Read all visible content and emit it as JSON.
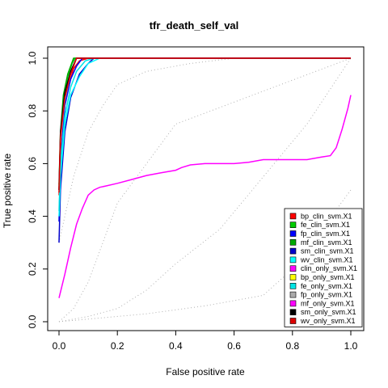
{
  "chart_data": {
    "type": "line",
    "title": "tfr_death_self_val",
    "xlabel": "False positive rate",
    "ylabel": "True positive rate",
    "xlim": [
      0,
      1
    ],
    "ylim": [
      0,
      1
    ],
    "xticks": [
      "0.0",
      "0.2",
      "0.4",
      "0.6",
      "0.8",
      "1.0"
    ],
    "yticks": [
      "0.0",
      "0.2",
      "0.4",
      "0.6",
      "0.8",
      "1.0"
    ],
    "grid": false,
    "legend_position": "bottom-right",
    "series": [
      {
        "name": "bp_clin_svm.X1",
        "color": "#ff0000",
        "x": [
          0,
          0.005,
          0.02,
          0.035,
          0.05,
          0.07,
          0.1,
          1.0
        ],
        "y": [
          0.48,
          0.62,
          0.82,
          0.9,
          0.96,
          0.99,
          1.0,
          1.0
        ]
      },
      {
        "name": "fe_clin_svm.X1",
        "color": "#00cc00",
        "x": [
          0,
          0.005,
          0.015,
          0.03,
          0.045,
          0.055,
          1.0
        ],
        "y": [
          0.5,
          0.7,
          0.85,
          0.93,
          0.98,
          1.0,
          1.0
        ]
      },
      {
        "name": "fp_clin_svm.X1",
        "color": "#0000ff",
        "x": [
          0,
          0.005,
          0.02,
          0.04,
          0.06,
          0.08,
          1.0
        ],
        "y": [
          0.38,
          0.6,
          0.82,
          0.92,
          0.97,
          1.0,
          1.0
        ]
      },
      {
        "name": "mf_clin_svm.X1",
        "color": "#00aa00",
        "x": [
          0,
          0.005,
          0.015,
          0.03,
          0.05,
          1.0
        ],
        "y": [
          0.52,
          0.72,
          0.86,
          0.94,
          1.0,
          1.0
        ]
      },
      {
        "name": "sm_clin_svm.X1",
        "color": "#0000cc",
        "x": [
          0,
          0.005,
          0.02,
          0.04,
          0.07,
          0.1,
          0.12,
          1.0
        ],
        "y": [
          0.3,
          0.5,
          0.72,
          0.85,
          0.94,
          0.98,
          1.0,
          1.0
        ]
      },
      {
        "name": "wv_clin_svm.X1",
        "color": "#00ffff",
        "x": [
          0,
          0.005,
          0.02,
          0.04,
          0.07,
          0.1,
          0.14,
          1.0
        ],
        "y": [
          0.4,
          0.55,
          0.75,
          0.86,
          0.93,
          0.98,
          1.0,
          1.0
        ]
      },
      {
        "name": "clin_only_svm.X1",
        "color": "#ff00ff",
        "x": [
          0,
          0.02,
          0.04,
          0.06,
          0.08,
          0.1,
          0.12,
          0.14,
          0.16,
          0.2,
          0.25,
          0.3,
          0.35,
          0.4,
          0.42,
          0.45,
          0.5,
          0.6,
          0.65,
          0.7,
          0.75,
          0.8,
          0.85,
          0.9,
          0.93,
          0.95,
          0.97,
          0.99,
          1.0
        ],
        "y": [
          0.09,
          0.18,
          0.28,
          0.37,
          0.43,
          0.48,
          0.5,
          0.51,
          0.515,
          0.525,
          0.54,
          0.555,
          0.565,
          0.575,
          0.585,
          0.595,
          0.6,
          0.6,
          0.605,
          0.615,
          0.615,
          0.615,
          0.615,
          0.625,
          0.63,
          0.66,
          0.73,
          0.81,
          0.86
        ]
      },
      {
        "name": "bp_only_svm.X1",
        "color": "#ffff00",
        "x": [
          0,
          0.005,
          0.02,
          0.04,
          0.06,
          1.0
        ],
        "y": [
          0.5,
          0.7,
          0.85,
          0.95,
          1.0,
          1.0
        ]
      },
      {
        "name": "fe_only_svm.X1",
        "color": "#00e5e5",
        "x": [
          0,
          0.005,
          0.02,
          0.04,
          0.06,
          0.09,
          0.12,
          1.0
        ],
        "y": [
          0.42,
          0.6,
          0.78,
          0.89,
          0.95,
          0.99,
          1.0,
          1.0
        ]
      },
      {
        "name": "fp_only_svm.X1",
        "color": "#aaaaaa",
        "x": [
          0,
          0.005,
          0.02,
          0.04,
          0.06,
          1.0
        ],
        "y": [
          0.5,
          0.68,
          0.84,
          0.94,
          1.0,
          1.0
        ]
      },
      {
        "name": "mf_only_svm.X1",
        "color": "#ff00ff",
        "x": [
          0,
          0.005,
          0.02,
          0.04,
          0.06,
          1.0
        ],
        "y": [
          0.5,
          0.7,
          0.86,
          0.95,
          1.0,
          1.0
        ]
      },
      {
        "name": "sm_only_svm.X1",
        "color": "#000000",
        "x": [
          0,
          0.005,
          0.02,
          0.04,
          0.06,
          1.0
        ],
        "y": [
          0.5,
          0.72,
          0.87,
          0.95,
          1.0,
          1.0
        ]
      },
      {
        "name": "wv_only_svm.X1",
        "color": "#dd0000",
        "x": [
          0,
          0.005,
          0.02,
          0.04,
          0.06,
          1.0
        ],
        "y": [
          0.49,
          0.7,
          0.85,
          0.94,
          1.0,
          1.0
        ]
      }
    ],
    "dotted_bands": [
      {
        "color": "#b0b0b0",
        "x": [
          0,
          0.05,
          0.1,
          0.15,
          0.2,
          0.3,
          0.4,
          1.0
        ],
        "y": [
          0,
          0.05,
          0.15,
          0.3,
          0.45,
          0.6,
          0.75,
          1.0
        ]
      },
      {
        "color": "#b0b0b0",
        "x": [
          0,
          0.1,
          0.2,
          0.3,
          0.4,
          0.55,
          0.7,
          0.85,
          1.0
        ],
        "y": [
          0,
          0.02,
          0.05,
          0.12,
          0.22,
          0.35,
          0.55,
          0.75,
          1.0
        ]
      },
      {
        "color": "#b0b0b0",
        "x": [
          0,
          0.3,
          0.5,
          0.7,
          0.8,
          0.9,
          1.0
        ],
        "y": [
          0,
          0.03,
          0.06,
          0.1,
          0.2,
          0.35,
          0.5
        ]
      },
      {
        "color": "#b0b0b0",
        "x": [
          0,
          0.05,
          0.1,
          0.15,
          0.2,
          0.3,
          0.45,
          0.6,
          0.75,
          0.9,
          1.0
        ],
        "y": [
          0.3,
          0.55,
          0.72,
          0.82,
          0.9,
          0.95,
          0.98,
          1.0,
          1.0,
          1.0,
          1.0
        ]
      }
    ]
  }
}
